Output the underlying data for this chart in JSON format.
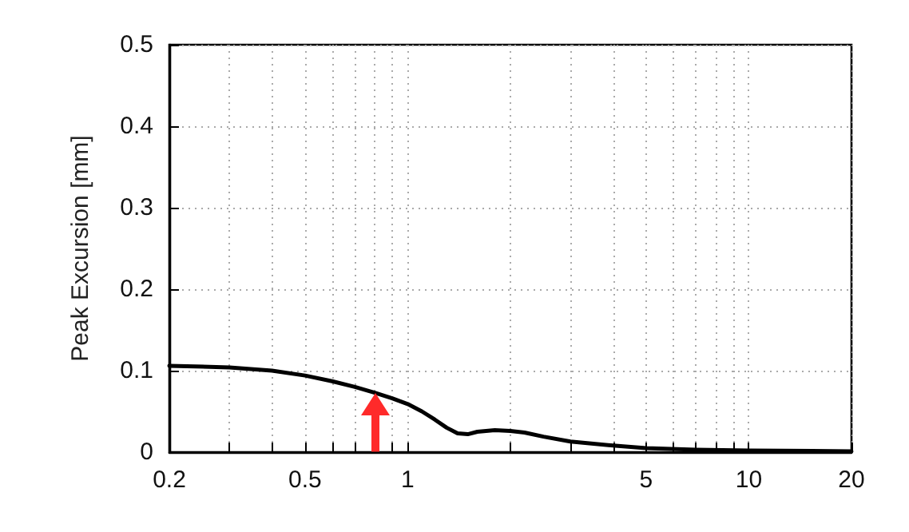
{
  "chart_data": {
    "type": "line",
    "ylabel": "Peak Excursion [mm]",
    "log": "x",
    "grid": true,
    "line_style": "solid",
    "marker": "none",
    "x": [
      0.2,
      0.3,
      0.4,
      0.5,
      0.6,
      0.7,
      0.8,
      0.9,
      1.0,
      1.1,
      1.2,
      1.3,
      1.4,
      1.5,
      1.6,
      1.8,
      2.0,
      2.2,
      2.5,
      3,
      4,
      5,
      7,
      10,
      20
    ],
    "series": [
      {
        "color": "#000000",
        "values": [
          0.106,
          0.104,
          0.1,
          0.094,
          0.087,
          0.08,
          0.073,
          0.066,
          0.059,
          0.05,
          0.04,
          0.03,
          0.023,
          0.022,
          0.025,
          0.027,
          0.026,
          0.024,
          0.019,
          0.013,
          0.008,
          0.005,
          0.003,
          0.002,
          0.001
        ]
      }
    ],
    "xlim": [
      0.2,
      20
    ],
    "ylim": [
      0,
      0.5
    ],
    "xticks": [
      0.2,
      {
        "value": 0.3,
        "label": null
      },
      {
        "value": 0.4,
        "label": null
      },
      0.5,
      {
        "value": 0.6,
        "label": null
      },
      {
        "value": 0.7,
        "label": null
      },
      {
        "value": 0.8,
        "label": null
      },
      {
        "value": 0.9,
        "label": null
      },
      1,
      {
        "value": 2,
        "label": null
      },
      {
        "value": 3,
        "label": null
      },
      {
        "value": 4,
        "label": null
      },
      5,
      {
        "value": 6,
        "label": null
      },
      {
        "value": 7,
        "label": null
      },
      {
        "value": 8,
        "label": null
      },
      {
        "value": 9,
        "label": null
      },
      10,
      20
    ],
    "yticks": [
      0,
      0.1,
      0.2,
      0.3,
      0.4,
      0.5
    ]
  }
}
